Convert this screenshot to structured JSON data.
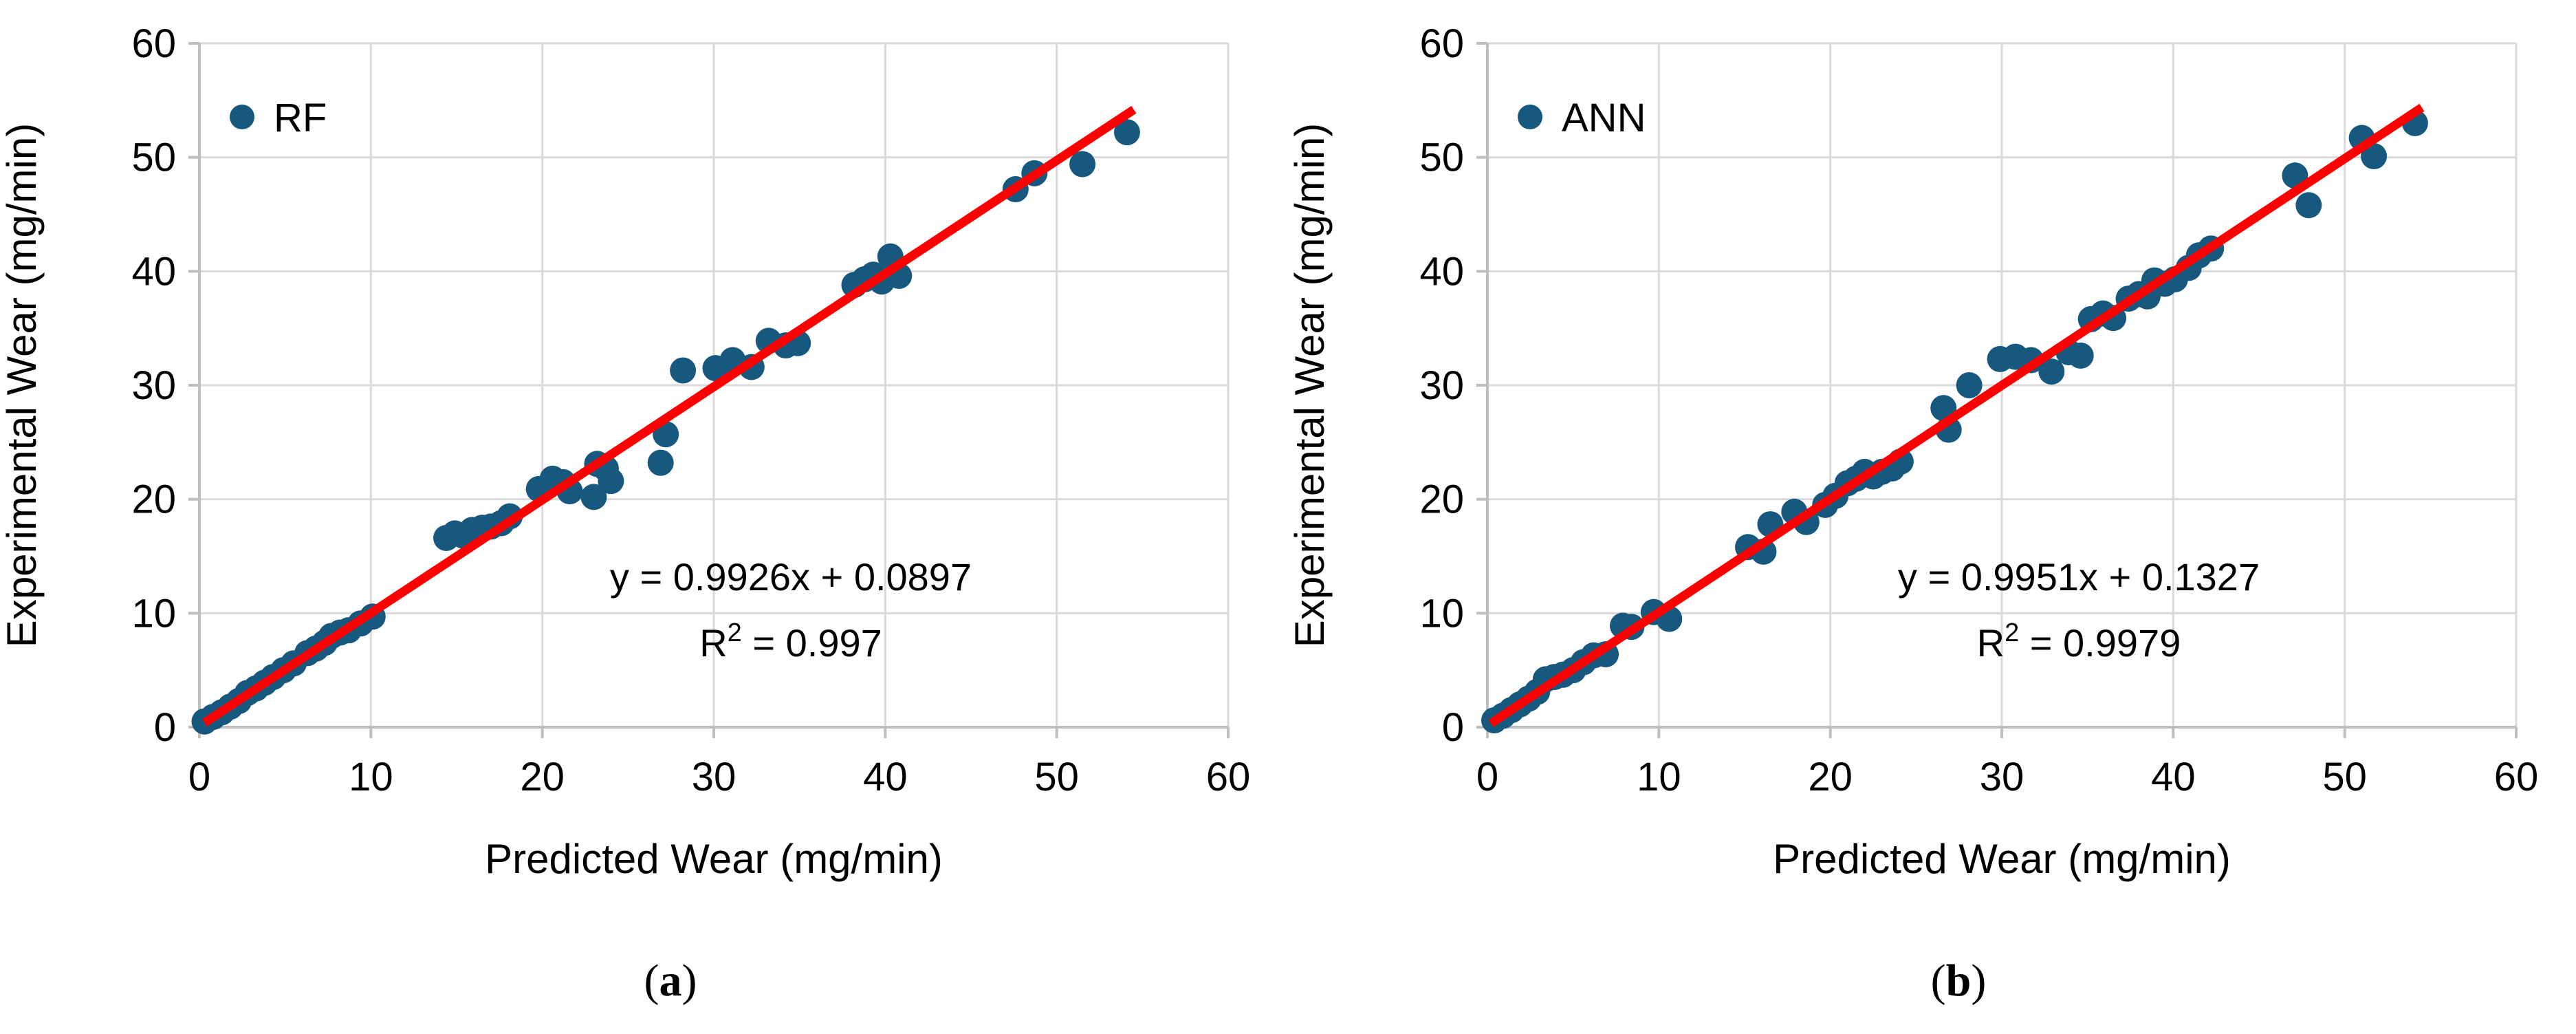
{
  "figure": {
    "panels": [
      {
        "caption": {
          "pre": "(",
          "letter": "a",
          "post": ")"
        }
      },
      {
        "caption": {
          "pre": "(",
          "letter": "b",
          "post": ")"
        }
      }
    ]
  },
  "chart_data": [
    {
      "id": "rf",
      "type": "scatter",
      "legend_label": "RF",
      "xlabel": "Predicted Wear (mg/min)",
      "ylabel": "Experimental Wear (mg/min)",
      "xlim": [
        0,
        60
      ],
      "ylim": [
        0,
        60
      ],
      "xticks": [
        0,
        10,
        20,
        30,
        40,
        50,
        60
      ],
      "yticks": [
        0,
        10,
        20,
        30,
        40,
        50,
        60
      ],
      "grid": true,
      "legend_position": "top-left-inside",
      "equation_line1": "y = 0.9926x + 0.0897",
      "r2": {
        "base": "R",
        "sup": "2",
        "rest": " = 0.997"
      },
      "fit": {
        "slope": 0.9926,
        "intercept": 0.0897,
        "x_start": 0.3,
        "x_end": 54.5
      },
      "marker_color": "#16587E",
      "line_color": "#FF0000",
      "grid_color": "#D9D9D9",
      "axis_color": "#BFBFBF",
      "text_color": "#000000",
      "points": [
        [
          0.3,
          0.5
        ],
        [
          0.8,
          0.9
        ],
        [
          1.3,
          1.3
        ],
        [
          1.8,
          1.8
        ],
        [
          2.3,
          2.3
        ],
        [
          2.8,
          3.0
        ],
        [
          3.3,
          3.4
        ],
        [
          3.8,
          3.9
        ],
        [
          4.3,
          4.4
        ],
        [
          4.9,
          5.0
        ],
        [
          5.5,
          5.6
        ],
        [
          6.3,
          6.5
        ],
        [
          6.8,
          6.9
        ],
        [
          7.3,
          7.4
        ],
        [
          7.7,
          8.0
        ],
        [
          8.2,
          8.3
        ],
        [
          8.7,
          8.5
        ],
        [
          9.4,
          9.1
        ],
        [
          10.1,
          9.7
        ],
        [
          14.4,
          16.6
        ],
        [
          14.9,
          17.0
        ],
        [
          15.4,
          16.8
        ],
        [
          15.9,
          17.3
        ],
        [
          16.5,
          17.5
        ],
        [
          17.0,
          17.6
        ],
        [
          17.6,
          17.9
        ],
        [
          18.1,
          18.5
        ],
        [
          19.8,
          20.9
        ],
        [
          20.6,
          21.8
        ],
        [
          21.2,
          21.5
        ],
        [
          21.6,
          20.7
        ],
        [
          23.0,
          20.2
        ],
        [
          23.2,
          23.1
        ],
        [
          23.7,
          22.7
        ],
        [
          24.0,
          21.6
        ],
        [
          26.9,
          23.2
        ],
        [
          27.2,
          25.7
        ],
        [
          28.2,
          31.3
        ],
        [
          30.1,
          31.5
        ],
        [
          31.1,
          32.2
        ],
        [
          32.2,
          31.6
        ],
        [
          33.2,
          33.9
        ],
        [
          34.2,
          33.5
        ],
        [
          34.9,
          33.7
        ],
        [
          38.2,
          38.8
        ],
        [
          38.8,
          39.3
        ],
        [
          39.3,
          39.7
        ],
        [
          39.8,
          39.1
        ],
        [
          40.3,
          41.3
        ],
        [
          40.8,
          39.6
        ],
        [
          47.6,
          47.2
        ],
        [
          48.7,
          48.6
        ],
        [
          51.5,
          49.4
        ],
        [
          54.1,
          52.2
        ]
      ]
    },
    {
      "id": "ann",
      "type": "scatter",
      "legend_label": "ANN",
      "xlabel": "Predicted Wear (mg/min)",
      "ylabel": "Experimental Wear (mg/min)",
      "xlim": [
        0,
        60
      ],
      "ylim": [
        0,
        60
      ],
      "xticks": [
        0,
        10,
        20,
        30,
        40,
        50,
        60
      ],
      "yticks": [
        0,
        10,
        20,
        30,
        40,
        50,
        60
      ],
      "grid": true,
      "legend_position": "top-left-inside",
      "equation_line1": "y = 0.9951x + 0.1327",
      "r2": {
        "base": "R",
        "sup": "2",
        "rest": " = 0.9979"
      },
      "fit": {
        "slope": 0.9951,
        "intercept": 0.1327,
        "x_start": 0.2,
        "x_end": 54.5
      },
      "marker_color": "#16587E",
      "line_color": "#FF0000",
      "grid_color": "#D9D9D9",
      "axis_color": "#BFBFBF",
      "text_color": "#000000",
      "points": [
        [
          0.4,
          0.6
        ],
        [
          0.9,
          1.0
        ],
        [
          1.4,
          1.5
        ],
        [
          1.9,
          2.0
        ],
        [
          2.4,
          2.5
        ],
        [
          2.9,
          3.1
        ],
        [
          3.4,
          4.2
        ],
        [
          3.9,
          4.4
        ],
        [
          4.4,
          4.6
        ],
        [
          5.0,
          5.0
        ],
        [
          5.6,
          5.7
        ],
        [
          6.2,
          6.3
        ],
        [
          6.9,
          6.4
        ],
        [
          7.9,
          8.9
        ],
        [
          8.4,
          8.8
        ],
        [
          9.7,
          10.1
        ],
        [
          10.6,
          9.5
        ],
        [
          15.2,
          15.8
        ],
        [
          16.1,
          15.4
        ],
        [
          16.5,
          17.8
        ],
        [
          17.9,
          18.9
        ],
        [
          18.6,
          18.0
        ],
        [
          19.7,
          19.5
        ],
        [
          20.3,
          20.3
        ],
        [
          21.0,
          21.4
        ],
        [
          21.5,
          21.8
        ],
        [
          22.0,
          22.4
        ],
        [
          22.5,
          22.0
        ],
        [
          23.0,
          22.4
        ],
        [
          23.6,
          22.7
        ],
        [
          24.1,
          23.3
        ],
        [
          26.6,
          28.0
        ],
        [
          26.9,
          26.1
        ],
        [
          28.1,
          30.0
        ],
        [
          29.9,
          32.3
        ],
        [
          30.8,
          32.5
        ],
        [
          31.7,
          32.2
        ],
        [
          32.9,
          31.2
        ],
        [
          33.9,
          32.9
        ],
        [
          34.6,
          32.6
        ],
        [
          35.2,
          35.8
        ],
        [
          35.9,
          36.3
        ],
        [
          36.5,
          35.9
        ],
        [
          37.4,
          37.6
        ],
        [
          38.0,
          38.0
        ],
        [
          38.5,
          37.8
        ],
        [
          38.9,
          39.2
        ],
        [
          39.5,
          38.9
        ],
        [
          40.1,
          39.3
        ],
        [
          40.9,
          40.3
        ],
        [
          41.5,
          41.4
        ],
        [
          42.2,
          42.0
        ],
        [
          47.1,
          48.4
        ],
        [
          47.9,
          45.8
        ],
        [
          51.0,
          51.7
        ],
        [
          51.7,
          50.1
        ],
        [
          54.1,
          53.0
        ]
      ]
    }
  ]
}
